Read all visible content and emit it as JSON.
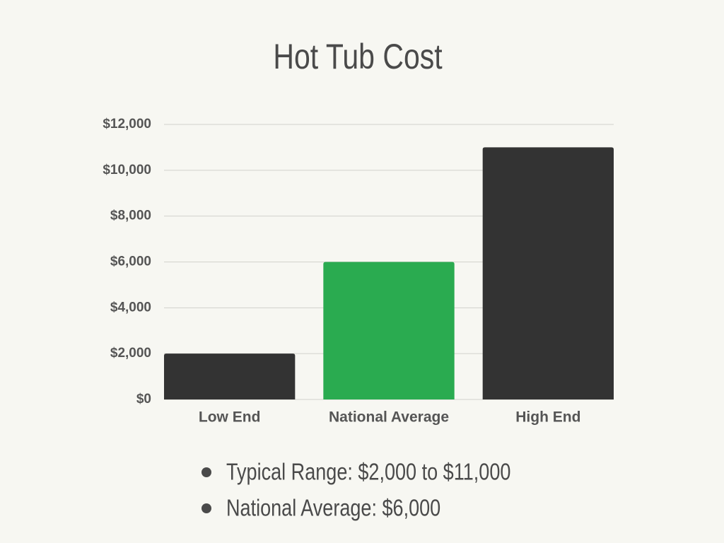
{
  "chart_data": {
    "type": "bar",
    "title": "Hot Tub Cost",
    "categories": [
      "Low End",
      "National Average",
      "High End"
    ],
    "values": [
      2000,
      6000,
      11000
    ],
    "colors": [
      "#333333",
      "#2aab50",
      "#333333"
    ],
    "ylim": [
      0,
      12000
    ],
    "yticks": [
      {
        "value": 0,
        "label": "$0"
      },
      {
        "value": 2000,
        "label": "$2,000"
      },
      {
        "value": 4000,
        "label": "$4,000"
      },
      {
        "value": 6000,
        "label": "$6,000"
      },
      {
        "value": 8000,
        "label": "$8,000"
      },
      {
        "value": 10000,
        "label": "$10,000"
      },
      {
        "value": 12000,
        "label": "$12,000"
      }
    ],
    "grid": true,
    "annotations": [
      "Typical Range: $2,000 to $11,000",
      "National Average: $6,000"
    ]
  }
}
